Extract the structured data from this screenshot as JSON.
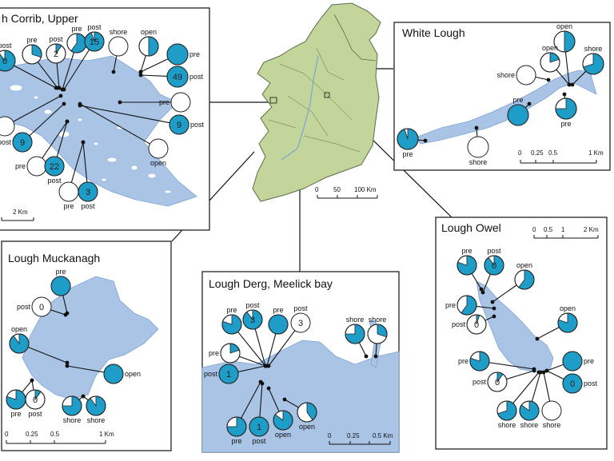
{
  "colors": {
    "water": "#a9c4e5",
    "water_edge": "#7fa4d4",
    "land": "#c2d59a",
    "land_edge": "#5d6b45",
    "cyan": "#1e9dc8",
    "frame": "#222222",
    "leader": "#111111"
  },
  "ireland": {
    "scale_labels": [
      "0",
      "50",
      "100 Km"
    ]
  },
  "panels": {
    "corrib": {
      "title": "h Corrib, Upper",
      "scale_labels": [
        "2 Km"
      ],
      "pies": [
        {
          "label": "post",
          "label_pos": "above",
          "value": 0.9,
          "count": "0"
        },
        {
          "label": "pre",
          "label_pos": "above",
          "value": 0.3,
          "count": ""
        },
        {
          "label": "post",
          "label_pos": "above",
          "value": 0.1,
          "count": "2"
        },
        {
          "label": "pre",
          "label_pos": "above",
          "value": 0.6,
          "count": ""
        },
        {
          "label": "post",
          "label_pos": "above",
          "value": 0.95,
          "count": "15"
        },
        {
          "label": "shore",
          "label_pos": "above",
          "value": 0,
          "count": ""
        },
        {
          "label": "open",
          "label_pos": "above",
          "value": 0.5,
          "count": ""
        },
        {
          "label": "pre",
          "label_pos": "right",
          "value": 1,
          "count": ""
        },
        {
          "label": "post",
          "label_pos": "right",
          "value": 1,
          "count": "49"
        },
        {
          "label": "pre",
          "label_pos": "left",
          "value": 0,
          "count": ""
        },
        {
          "label": "post",
          "label_pos": "right",
          "value": 1,
          "count": "9"
        },
        {
          "label": "open",
          "label_pos": "below",
          "value": 0,
          "count": ""
        },
        {
          "label": "",
          "label_pos": "none",
          "value": 0,
          "count": ""
        },
        {
          "label": "post",
          "label_pos": "left",
          "value": 1,
          "count": "9"
        },
        {
          "label": "pre",
          "label_pos": "left",
          "value": 0,
          "count": ""
        },
        {
          "label": "post",
          "label_pos": "below",
          "value": 1,
          "count": "22"
        },
        {
          "label": "pre",
          "label_pos": "below",
          "value": 0,
          "count": ""
        },
        {
          "label": "post",
          "label_pos": "below",
          "value": 1,
          "count": "3"
        }
      ]
    },
    "white": {
      "title": "White Lough",
      "scale_labels": [
        "0",
        "0.25",
        "0.5",
        "1 Km"
      ],
      "pies": [
        {
          "label": "open",
          "label_pos": "above",
          "value": 0.5,
          "count": ""
        },
        {
          "label": "open",
          "label_pos": "above",
          "value": 0.2,
          "count": ""
        },
        {
          "label": "shore",
          "label_pos": "above",
          "value": 0.7,
          "count": ""
        },
        {
          "label": "shore",
          "label_pos": "left",
          "value": 0,
          "count": ""
        },
        {
          "label": "pre",
          "label_pos": "above",
          "value": 1,
          "count": ""
        },
        {
          "label": "pre",
          "label_pos": "below",
          "value": 0.75,
          "count": ""
        },
        {
          "label": "pre",
          "label_pos": "below",
          "value": 0.95,
          "count": ""
        },
        {
          "label": "shore",
          "label_pos": "below",
          "value": 0,
          "count": ""
        }
      ]
    },
    "muckanagh": {
      "title": "Lough Muckanagh",
      "scale_labels": [
        "0",
        "0.25",
        "0.5",
        "1 Km"
      ],
      "pies": [
        {
          "label": "pre",
          "label_pos": "above",
          "value": 1,
          "count": ""
        },
        {
          "label": "post",
          "label_pos": "left",
          "value": 0,
          "count": "0"
        },
        {
          "label": "open",
          "label_pos": "above",
          "value": 0.9,
          "count": ""
        },
        {
          "label": "open",
          "label_pos": "right",
          "value": 1,
          "count": ""
        },
        {
          "label": "pre",
          "label_pos": "below",
          "value": 0.8,
          "count": ""
        },
        {
          "label": "post",
          "label_pos": "below",
          "value": 0.1,
          "count": "0"
        },
        {
          "label": "shore",
          "label_pos": "below",
          "value": 0.75,
          "count": ""
        },
        {
          "label": "shore",
          "label_pos": "below",
          "value": 0.9,
          "count": ""
        }
      ]
    },
    "derg": {
      "title": "Lough Derg, Meelick bay",
      "scale_labels": [
        "0",
        "0.25",
        "0.5 Km"
      ],
      "pies": [
        {
          "label": "pre",
          "label_pos": "above",
          "value": 0.8,
          "count": ""
        },
        {
          "label": "post",
          "label_pos": "above",
          "value": 0.9,
          "count": "3"
        },
        {
          "label": "pre",
          "label_pos": "above",
          "value": 1,
          "count": ""
        },
        {
          "label": "post",
          "label_pos": "above",
          "value": 0,
          "count": "3"
        },
        {
          "label": "shore",
          "label_pos": "above",
          "value": 0.75,
          "count": ""
        },
        {
          "label": "shore",
          "label_pos": "above",
          "value": 0.3,
          "count": ""
        },
        {
          "label": "pre",
          "label_pos": "left",
          "value": 0.2,
          "count": ""
        },
        {
          "label": "post",
          "label_pos": "left",
          "value": 1,
          "count": "1"
        },
        {
          "label": "pre",
          "label_pos": "below",
          "value": 0.75,
          "count": ""
        },
        {
          "label": "post",
          "label_pos": "below",
          "value": 1,
          "count": "1"
        },
        {
          "label": "open",
          "label_pos": "below",
          "value": 0.85,
          "count": ""
        },
        {
          "label": "open",
          "label_pos": "below",
          "value": 0.4,
          "count": ""
        }
      ]
    },
    "owel": {
      "title": "Lough Owel",
      "scale_labels": [
        "0",
        "0.5",
        "1",
        "2 Km"
      ],
      "pies": [
        {
          "label": "pre",
          "label_pos": "above",
          "value": 0.8,
          "count": ""
        },
        {
          "label": "post",
          "label_pos": "above",
          "value": 0.9,
          "count": "0"
        },
        {
          "label": "open",
          "label_pos": "above",
          "value": 0.6,
          "count": ""
        },
        {
          "label": "pre",
          "label_pos": "left",
          "value": 0.6,
          "count": ""
        },
        {
          "label": "post",
          "label_pos": "left",
          "value": 0.05,
          "count": "0"
        },
        {
          "label": "open",
          "label_pos": "above",
          "value": 0.8,
          "count": ""
        },
        {
          "label": "pre",
          "label_pos": "left",
          "value": 0.8,
          "count": ""
        },
        {
          "label": "post",
          "label_pos": "left",
          "value": 0.1,
          "count": "0"
        },
        {
          "label": "pre",
          "label_pos": "right",
          "value": 1,
          "count": ""
        },
        {
          "label": "post",
          "label_pos": "right",
          "value": 1,
          "count": "0"
        },
        {
          "label": "shore",
          "label_pos": "below",
          "value": 0.7,
          "count": ""
        },
        {
          "label": "shore",
          "label_pos": "below",
          "value": 0.85,
          "count": ""
        },
        {
          "label": "shore",
          "label_pos": "below",
          "value": 0,
          "count": ""
        }
      ]
    }
  }
}
